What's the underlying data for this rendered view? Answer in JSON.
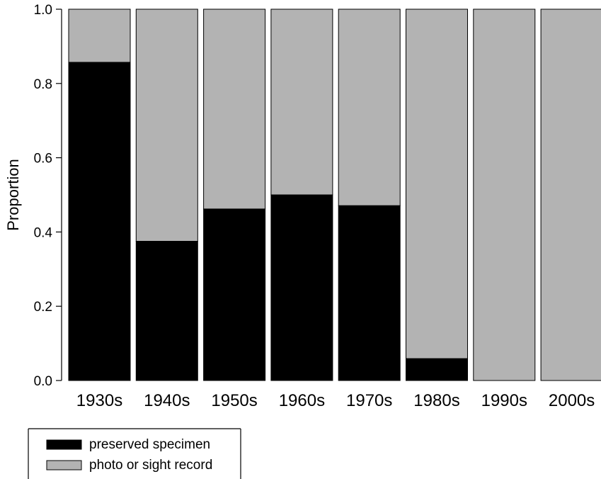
{
  "chart_data": {
    "type": "bar",
    "stacked": true,
    "title": "",
    "xlabel": "",
    "ylabel": "Proportion",
    "ylim": [
      0,
      1
    ],
    "yticks": [
      "0.0",
      "0.2",
      "0.4",
      "0.6",
      "0.8",
      "1.0"
    ],
    "categories": [
      "1930s",
      "1940s",
      "1950s",
      "1960s",
      "1970s",
      "1980s",
      "1990s",
      "2000s"
    ],
    "series": [
      {
        "name": "preserved specimen",
        "color": "#000000",
        "values": [
          0.857,
          0.375,
          0.462,
          0.5,
          0.471,
          0.059,
          0.0,
          0.0
        ]
      },
      {
        "name": "photo or sight record",
        "color": "#b3b3b3",
        "values": [
          0.143,
          0.625,
          0.538,
          0.5,
          0.529,
          0.941,
          1.0,
          1.0
        ]
      }
    ],
    "legend_position": "bottom-left",
    "grid": false
  }
}
